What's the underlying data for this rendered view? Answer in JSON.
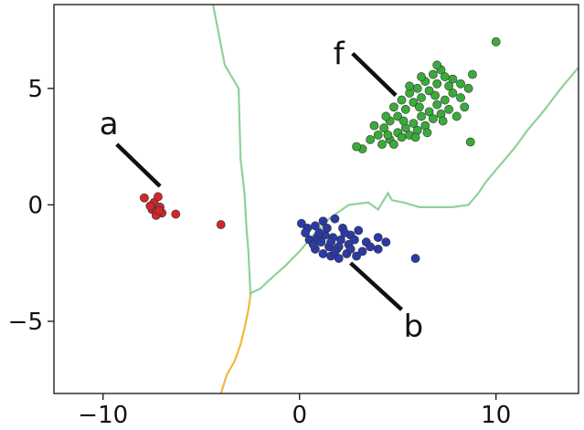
{
  "chart_data": {
    "type": "scatter",
    "xlim": [
      -12.5,
      14.2
    ],
    "ylim": [
      -8.1,
      8.6
    ],
    "x_ticks": [
      -10,
      0,
      10
    ],
    "x_tick_labels": [
      "−10",
      "0",
      "10"
    ],
    "y_ticks": [
      -5,
      0,
      5
    ],
    "y_tick_labels": [
      "−5",
      "0",
      "5"
    ],
    "grid": false,
    "clusters": [
      {
        "label": "a",
        "color": "#d0282b",
        "points": [
          [
            -7.9,
            0.3
          ],
          [
            -7.4,
            0.1
          ],
          [
            -7.2,
            0.35
          ],
          [
            -7.5,
            -0.2
          ],
          [
            -7.3,
            -0.3
          ],
          [
            -7.1,
            -0.1
          ],
          [
            -7.0,
            -0.35
          ],
          [
            -7.3,
            -0.45
          ],
          [
            -7.6,
            -0.05
          ],
          [
            -7.15,
            -0.25
          ],
          [
            -6.3,
            -0.4
          ],
          [
            -4.0,
            -0.85
          ]
        ],
        "label_pos": [
          -9.7,
          3.5
        ],
        "pointer": [
          [
            -9.3,
            2.6
          ],
          [
            -7.1,
            0.8
          ]
        ]
      },
      {
        "label": "b",
        "color": "#2b3aa6",
        "points": [
          [
            0.1,
            -0.8
          ],
          [
            0.4,
            -1.0
          ],
          [
            0.8,
            -0.9
          ],
          [
            1.2,
            -0.7
          ],
          [
            1.8,
            -0.6
          ],
          [
            2.2,
            -1.0
          ],
          [
            2.6,
            -1.3
          ],
          [
            3.0,
            -1.1
          ],
          [
            3.4,
            -1.6
          ],
          [
            3.2,
            -2.0
          ],
          [
            2.9,
            -2.2
          ],
          [
            2.4,
            -2.1
          ],
          [
            2.0,
            -2.3
          ],
          [
            1.6,
            -2.2
          ],
          [
            1.2,
            -2.1
          ],
          [
            0.8,
            -1.9
          ],
          [
            0.5,
            -1.5
          ],
          [
            0.9,
            -1.4
          ],
          [
            1.3,
            -1.3
          ],
          [
            1.7,
            -1.4
          ],
          [
            2.1,
            -1.5
          ],
          [
            2.5,
            -1.7
          ],
          [
            1.5,
            -1.8
          ],
          [
            1.9,
            -1.9
          ],
          [
            1.1,
            -1.6
          ],
          [
            2.3,
            -1.2
          ],
          [
            1.4,
            -1.0
          ],
          [
            1.0,
            -1.2
          ],
          [
            3.6,
            -1.8
          ],
          [
            4.0,
            -1.9
          ],
          [
            4.4,
            -1.6
          ],
          [
            4.0,
            -1.4
          ],
          [
            5.9,
            -2.3
          ],
          [
            0.3,
            -1.2
          ],
          [
            2.8,
            -1.5
          ],
          [
            1.6,
            -1.6
          ],
          [
            2.0,
            -1.8
          ],
          [
            0.7,
            -1.7
          ],
          [
            1.8,
            -2.0
          ],
          [
            2.6,
            -1.9
          ]
        ],
        "label_pos": [
          5.8,
          -5.2
        ],
        "pointer": [
          [
            5.2,
            -4.5
          ],
          [
            2.6,
            -2.5
          ]
        ]
      },
      {
        "label": "f",
        "color": "#3aab3a",
        "points": [
          [
            3.2,
            2.4
          ],
          [
            3.6,
            2.8
          ],
          [
            4.0,
            3.0
          ],
          [
            4.3,
            3.3
          ],
          [
            4.6,
            3.6
          ],
          [
            5.0,
            3.8
          ],
          [
            5.4,
            4.1
          ],
          [
            5.8,
            4.4
          ],
          [
            6.2,
            4.6
          ],
          [
            6.6,
            4.9
          ],
          [
            7.0,
            5.2
          ],
          [
            7.4,
            5.5
          ],
          [
            7.8,
            5.4
          ],
          [
            8.2,
            5.2
          ],
          [
            8.6,
            5.0
          ],
          [
            4.2,
            2.6
          ],
          [
            4.6,
            2.8
          ],
          [
            5.0,
            3.1
          ],
          [
            5.4,
            3.3
          ],
          [
            5.8,
            3.5
          ],
          [
            6.2,
            3.8
          ],
          [
            6.6,
            4.0
          ],
          [
            7.0,
            4.3
          ],
          [
            7.4,
            4.5
          ],
          [
            7.8,
            4.8
          ],
          [
            8.2,
            4.6
          ],
          [
            5.2,
            4.5
          ],
          [
            5.6,
            4.8
          ],
          [
            6.0,
            5.0
          ],
          [
            6.4,
            5.3
          ],
          [
            6.8,
            5.6
          ],
          [
            7.2,
            5.8
          ],
          [
            4.8,
            2.6
          ],
          [
            5.2,
            2.9
          ],
          [
            5.6,
            3.0
          ],
          [
            6.0,
            3.2
          ],
          [
            6.4,
            3.4
          ],
          [
            6.8,
            3.7
          ],
          [
            7.2,
            3.9
          ],
          [
            7.6,
            4.1
          ],
          [
            8.8,
            5.6
          ],
          [
            8.4,
            4.2
          ],
          [
            8.0,
            3.8
          ],
          [
            4.4,
            3.8
          ],
          [
            4.8,
            4.2
          ],
          [
            5.6,
            5.1
          ],
          [
            6.2,
            5.5
          ],
          [
            7.0,
            6.0
          ],
          [
            3.8,
            3.4
          ],
          [
            10.0,
            7.0
          ],
          [
            8.7,
            2.7
          ],
          [
            2.9,
            2.5
          ],
          [
            4.5,
            3.0
          ],
          [
            5.3,
            3.6
          ],
          [
            6.1,
            4.2
          ],
          [
            6.9,
            4.7
          ],
          [
            7.6,
            5.1
          ],
          [
            5.9,
            2.9
          ],
          [
            6.5,
            3.1
          ],
          [
            7.3,
            3.6
          ]
        ],
        "label_pos": [
          2.0,
          6.5
        ],
        "pointer": [
          [
            2.7,
            6.5
          ],
          [
            4.9,
            4.7
          ]
        ]
      }
    ],
    "boundaries": [
      {
        "color": "#8fd19a",
        "points": [
          [
            -4.4,
            8.6
          ],
          [
            -3.8,
            6.0
          ],
          [
            -3.1,
            5.0
          ],
          [
            -3.0,
            2.0
          ],
          [
            -2.8,
            0.5
          ],
          [
            -2.7,
            -1.0
          ],
          [
            -2.6,
            -2.0
          ],
          [
            -2.5,
            -3.8
          ],
          [
            -2.0,
            -3.6
          ],
          [
            -1.5,
            -3.2
          ],
          [
            -0.7,
            -2.6
          ],
          [
            0.0,
            -2.0
          ],
          [
            0.7,
            -1.3
          ],
          [
            1.5,
            -0.6
          ],
          [
            2.5,
            0.0
          ],
          [
            3.5,
            0.1
          ],
          [
            4.0,
            -0.2
          ],
          [
            4.5,
            0.5
          ],
          [
            4.7,
            0.2
          ],
          [
            5.3,
            0.1
          ],
          [
            6.1,
            -0.1
          ],
          [
            7.8,
            -0.1
          ],
          [
            8.6,
            0.0
          ],
          [
            9.1,
            0.5
          ],
          [
            9.5,
            1.0
          ],
          [
            10.0,
            1.5
          ],
          [
            10.5,
            2.0
          ],
          [
            11.0,
            2.5
          ],
          [
            11.6,
            3.2
          ],
          [
            12.4,
            4.0
          ],
          [
            13.3,
            5.0
          ],
          [
            14.2,
            5.9
          ]
        ]
      },
      {
        "color": "#f2b73c",
        "points": [
          [
            -2.5,
            -3.9
          ],
          [
            -2.6,
            -4.5
          ],
          [
            -2.8,
            -5.3
          ],
          [
            -3.0,
            -6.0
          ],
          [
            -3.3,
            -6.7
          ],
          [
            -3.7,
            -7.3
          ],
          [
            -4.0,
            -8.1
          ]
        ]
      },
      {
        "color": "#8fd19a",
        "points": [
          [
            -2.5,
            -3.8
          ],
          [
            -2.5,
            -3.9
          ]
        ]
      }
    ]
  }
}
